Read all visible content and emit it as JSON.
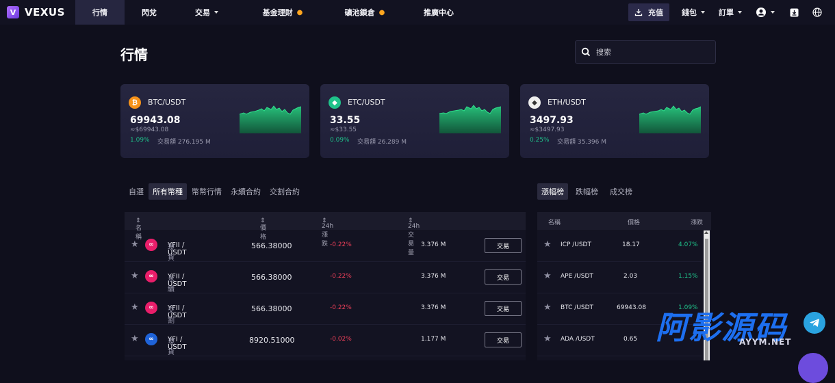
{
  "brand": {
    "name": "VEXUS",
    "mark": "V"
  },
  "nav": [
    {
      "label": "行情",
      "active": true
    },
    {
      "label": "閃兌",
      "active": false
    },
    {
      "label": "交易",
      "active": false,
      "dropdown": true
    },
    {
      "label": "基金理財",
      "active": false,
      "hot": true
    },
    {
      "label": "礦池鎖倉",
      "active": false,
      "hot": true
    },
    {
      "label": "推廣中心",
      "active": false
    }
  ],
  "topright": {
    "deposit": "充值",
    "wallet": "錢包",
    "orders": "訂單"
  },
  "page": {
    "title": "行情",
    "search_placeholder": "搜索"
  },
  "cards": [
    {
      "pair": "BTC/USDT",
      "price": "69943.08",
      "approx": "≈$69943.08",
      "change": "1.09%",
      "volume": "交易額 276.195 M",
      "coin_symbol": "₿",
      "coin_color": "#f7931a"
    },
    {
      "pair": "ETC/USDT",
      "price": "33.55",
      "approx": "≈$33.55",
      "change": "0.09%",
      "volume": "交易額 26.289 M",
      "coin_symbol": "◆",
      "coin_color": "#1fc28a"
    },
    {
      "pair": "ETH/USDT",
      "price": "3497.93",
      "approx": "≈$3497.93",
      "change": "0.25%",
      "volume": "交易額 35.396 M",
      "coin_symbol": "◆",
      "coin_color": "#eeeeee"
    }
  ],
  "market_tabs": [
    "自選",
    "所有幣種",
    "幣幣行情",
    "永續合約",
    "交割合約"
  ],
  "market_tabs_active": 1,
  "market_table": {
    "headers": {
      "name": "名稱",
      "price": "價格",
      "change": "24h漲跌",
      "volume": "24h交易量"
    },
    "trade_label": "交易",
    "rows": [
      {
        "name": "YFII / USDT",
        "type": "現貨",
        "price": "566.38000",
        "change": "-0.22%",
        "volume": "3.376 M"
      },
      {
        "name": "YFII / USDT",
        "type": "永續",
        "price": "566.38000",
        "change": "-0.22%",
        "volume": "3.376 M"
      },
      {
        "name": "YFII / USDT",
        "type": "交割",
        "price": "566.38000",
        "change": "-0.22%",
        "volume": "3.376 M"
      },
      {
        "name": "YFI / USDT",
        "type": "現貨",
        "price": "8920.51000",
        "change": "-0.02%",
        "volume": "1.177 M"
      }
    ]
  },
  "rank_tabs": [
    "漲幅榜",
    "跌幅榜",
    "成交榜"
  ],
  "rank_tabs_active": 0,
  "rank_table": {
    "headers": {
      "name": "名稱",
      "price": "價格",
      "change": "漲跌"
    },
    "rows": [
      {
        "name": "ICP /USDT",
        "price": "18.17",
        "change": "4.07%"
      },
      {
        "name": "APE /USDT",
        "price": "2.03",
        "change": "1.15%"
      },
      {
        "name": "BTC /USDT",
        "price": "69943.08",
        "change": "1.09%"
      },
      {
        "name": "ADA /USDT",
        "price": "0.65",
        "change": ""
      }
    ]
  },
  "watermark": {
    "main": "阿影源码",
    "sub": "AYYM.NET"
  }
}
